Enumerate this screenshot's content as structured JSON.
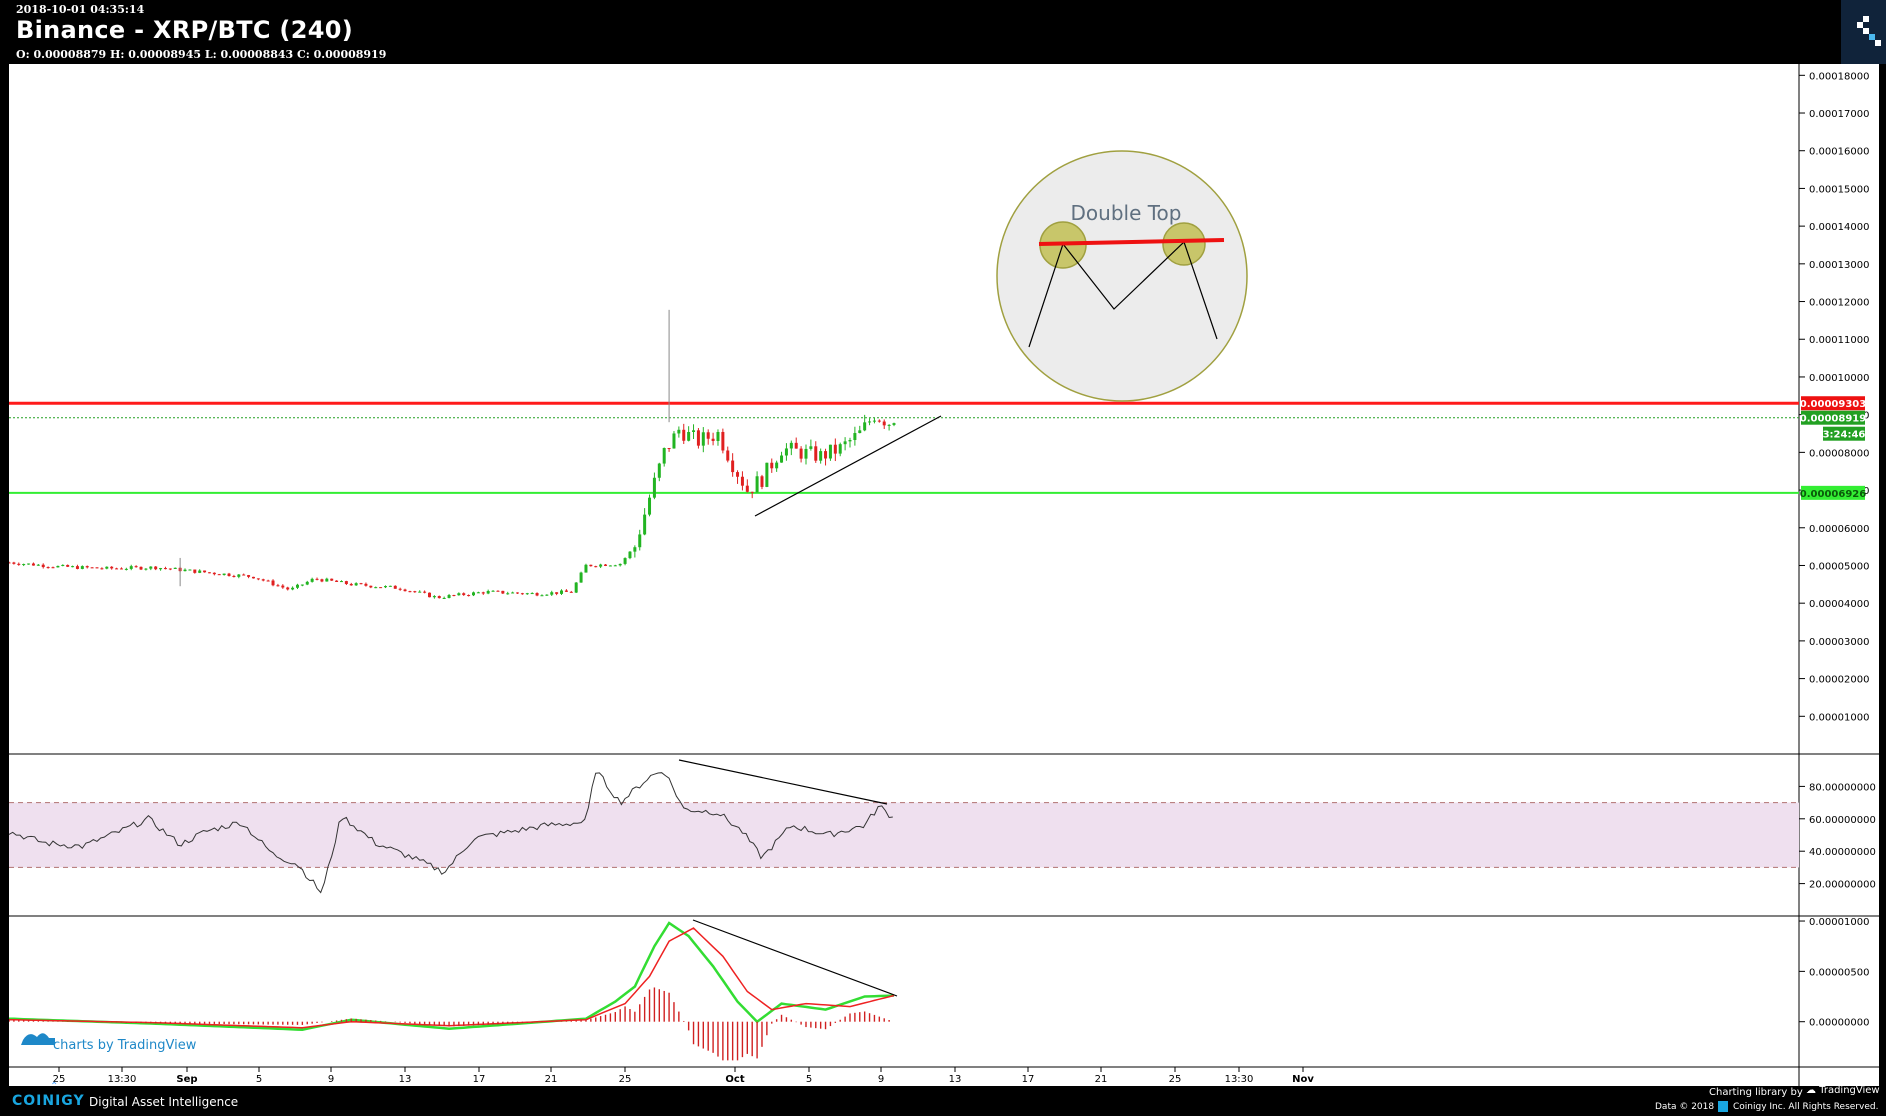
{
  "header": {
    "timestamp": "2018-10-01 04:35:14",
    "title": "Binance - XRP/BTC (240)",
    "ohlc": "O: 0.00008879 H: 0.00008945 L: 0.00008843 C: 0.00008919"
  },
  "footer": {
    "brand": "COINIGY",
    "tagline": "Digital Asset Intelligence",
    "charting_library": "Charting library by",
    "tradingview": "TradingView",
    "data_label": "Data © 2018",
    "rights": "Coinigy Inc. All Rights Reserved.",
    "watermark": "charts by TradingView"
  },
  "colors": {
    "up": "#22b422",
    "down": "#e02020",
    "resistance": "#ff1a1a",
    "support": "#33ee33",
    "rsi_band": "#efe0ef",
    "macd_line": "#33dd33",
    "signal_line": "#ee2222"
  },
  "chart_data": [
    {
      "type": "candlestick",
      "pane": "price",
      "y_ticks": [
        "0.00018000",
        "0.00017000",
        "0.00016000",
        "0.00015000",
        "0.00014000",
        "0.00013000",
        "0.00012000",
        "0.00011000",
        "0.00010000",
        "0.00009000",
        "0.00008000",
        "0.00007000",
        "0.00006000",
        "0.00005000",
        "0.00004000",
        "0.00003000",
        "0.00002000",
        "0.00001000"
      ],
      "ylim": [
        0.0,
        0.000183
      ],
      "x_ticks": [
        "25",
        "13:30",
        "Sep",
        "5",
        "9",
        "13",
        "17",
        "21",
        "25",
        "Oct",
        "5",
        "9",
        "13",
        "17",
        "21",
        "25",
        "13:30",
        "Nov"
      ],
      "price_labels": {
        "resistance": "0.00009303",
        "last": "0.00008919",
        "countdown": "3:24:46",
        "support": "0.00006926"
      },
      "resistance": 9.303e-05,
      "last": 8.919e-05,
      "support": 6.926e-05,
      "annotation": {
        "label": "Double Top"
      },
      "approx_close_path": [
        [
          0,
          5.08e-05
        ],
        [
          20,
          4.97e-05
        ],
        [
          40,
          4.92e-05
        ],
        [
          60,
          4.95e-05
        ],
        [
          80,
          4.82e-05
        ],
        [
          100,
          4.7e-05
        ],
        [
          115,
          4.35e-05
        ],
        [
          125,
          4.65e-05
        ],
        [
          140,
          4.5e-05
        ],
        [
          160,
          4.4e-05
        ],
        [
          175,
          4.15e-05
        ],
        [
          195,
          4.3e-05
        ],
        [
          215,
          4.25e-05
        ],
        [
          230,
          4.3e-05
        ],
        [
          236,
          5e-05
        ],
        [
          250,
          5.05e-05
        ],
        [
          256,
          5.5e-05
        ],
        [
          262,
          6.8e-05
        ],
        [
          268,
          8e-05
        ],
        [
          274,
          8.6e-05
        ],
        [
          282,
          8.3e-05
        ],
        [
          290,
          8.5e-05
        ],
        [
          296,
          7.7e-05
        ],
        [
          302,
          7e-05
        ],
        [
          308,
          7.3e-05
        ],
        [
          316,
          8.1e-05
        ],
        [
          324,
          8e-05
        ],
        [
          332,
          7.9e-05
        ],
        [
          340,
          8.1e-05
        ],
        [
          348,
          8.5e-05
        ],
        [
          354,
          9e-05
        ],
        [
          360,
          8.8e-05
        ],
        [
          362,
          8.92e-05
        ]
      ]
    },
    {
      "type": "line",
      "pane": "RSI",
      "y_ticks": [
        "80.00000000",
        "60.00000000",
        "40.00000000",
        "20.00000000"
      ],
      "ylim": [
        0,
        100
      ],
      "band": [
        30,
        70
      ],
      "approx_values": [
        [
          0,
          52
        ],
        [
          15,
          45
        ],
        [
          30,
          43
        ],
        [
          45,
          52
        ],
        [
          57,
          60
        ],
        [
          70,
          44
        ],
        [
          80,
          52
        ],
        [
          95,
          58
        ],
        [
          108,
          38
        ],
        [
          118,
          32
        ],
        [
          128,
          14
        ],
        [
          136,
          62
        ],
        [
          150,
          45
        ],
        [
          165,
          36
        ],
        [
          178,
          27
        ],
        [
          190,
          48
        ],
        [
          205,
          52
        ],
        [
          220,
          56
        ],
        [
          236,
          58
        ],
        [
          240,
          90
        ],
        [
          250,
          70
        ],
        [
          262,
          86
        ],
        [
          268,
          90
        ],
        [
          276,
          66
        ],
        [
          290,
          64
        ],
        [
          300,
          52
        ],
        [
          308,
          36
        ],
        [
          320,
          56
        ],
        [
          335,
          50
        ],
        [
          350,
          56
        ],
        [
          356,
          68
        ],
        [
          362,
          60
        ]
      ]
    },
    {
      "type": "line",
      "pane": "MACD",
      "y_ticks": [
        "0.00001000",
        "0.00000500",
        "0.00000000"
      ],
      "ylim": [
        -4.5e-06,
        1.05e-05
      ],
      "series": [
        {
          "approx_values": [
            [
              0,
              3e-07
            ],
            [
              60,
              -2e-07
            ],
            [
              120,
              -8e-07
            ],
            [
              140,
              2e-07
            ],
            [
              180,
              -7e-07
            ],
            [
              236,
              3e-07
            ],
            [
              248,
              2e-06
            ],
            [
              256,
              3.5e-06
            ],
            [
              264,
              7.5e-06
            ],
            [
              270,
              9.8e-06
            ],
            [
              278,
              8.5e-06
            ],
            [
              288,
              5.5e-06
            ],
            [
              298,
              2e-06
            ],
            [
              306,
              0.0
            ],
            [
              316,
              1.8e-06
            ],
            [
              334,
              1.2e-06
            ],
            [
              350,
              2.5e-06
            ],
            [
              362,
              2.6e-06
            ]
          ]
        },
        {
          "approx_values": [
            [
              0,
              2e-07
            ],
            [
              60,
              -1e-07
            ],
            [
              120,
              -6e-07
            ],
            [
              140,
              0.0
            ],
            [
              180,
              -4e-07
            ],
            [
              236,
              2e-07
            ],
            [
              252,
              1.8e-06
            ],
            [
              262,
              4.5e-06
            ],
            [
              270,
              8e-06
            ],
            [
              280,
              9.3e-06
            ],
            [
              292,
              6.5e-06
            ],
            [
              302,
              3e-06
            ],
            [
              312,
              1.2e-06
            ],
            [
              326,
              1.8e-06
            ],
            [
              344,
              1.5e-06
            ],
            [
              362,
              2.6e-06
            ]
          ]
        }
      ]
    }
  ]
}
